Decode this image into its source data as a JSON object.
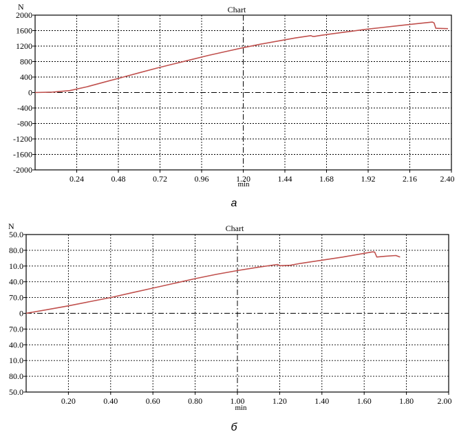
{
  "chart_data": [
    {
      "type": "line",
      "title": "Chart",
      "ylabel": "N",
      "xlabel": "min",
      "caption": "a",
      "xlim": [
        0,
        2.4
      ],
      "ylim": [
        -2000,
        2000
      ],
      "x_ticks": [
        "0.24",
        "0.48",
        "0.72",
        "0.96",
        "1.20",
        "1.44",
        "1.68",
        "1.92",
        "2.16",
        "2.40"
      ],
      "y_ticks": [
        "2000",
        "1600",
        "1200",
        "800",
        "400",
        "0",
        "-400",
        "-800",
        "-1200",
        "-1600",
        "-2000"
      ],
      "grid": true,
      "series": [
        {
          "color": "#c0504d",
          "x": [
            0,
            0.1,
            0.2,
            0.3,
            0.4,
            0.5,
            0.6,
            0.7,
            0.8,
            0.9,
            1.0,
            1.1,
            1.2,
            1.3,
            1.4,
            1.5,
            1.59,
            1.6,
            1.61,
            1.65,
            1.7,
            1.8,
            1.9,
            2.0,
            2.1,
            2.2,
            2.29,
            2.3,
            2.31,
            2.38
          ],
          "y": [
            0,
            10,
            50,
            150,
            270,
            390,
            510,
            630,
            740,
            850,
            960,
            1060,
            1160,
            1250,
            1330,
            1410,
            1470,
            1450,
            1450,
            1480,
            1510,
            1570,
            1630,
            1680,
            1730,
            1780,
            1820,
            1800,
            1660,
            1650
          ]
        }
      ]
    },
    {
      "type": "line",
      "title": "Chart",
      "ylabel": "N",
      "xlabel": "min",
      "caption": "б",
      "xlim": [
        0,
        2.0
      ],
      "ylim": [
        0,
        10
      ],
      "x_ticks": [
        "0.20",
        "0.40",
        "0.60",
        "0.80",
        "1.00",
        "1.20",
        "1.40",
        "1.60",
        "1.80",
        "2.00"
      ],
      "y_ticks": [
        "50.0",
        "80.0",
        "10.0",
        "40.0",
        "70.0",
        "0",
        "70.0",
        "40.0",
        "10.0",
        "80.0",
        "50.0"
      ],
      "grid": true,
      "series": [
        {
          "color": "#c0504d",
          "x": [
            0,
            0.1,
            0.2,
            0.3,
            0.4,
            0.5,
            0.6,
            0.7,
            0.8,
            0.9,
            1.0,
            1.1,
            1.19,
            1.2,
            1.25,
            1.3,
            1.4,
            1.5,
            1.64,
            1.65,
            1.66,
            1.7,
            1.75,
            1.77
          ],
          "y": [
            5.0,
            5.23,
            5.47,
            5.74,
            6.0,
            6.3,
            6.6,
            6.9,
            7.2,
            7.47,
            7.71,
            7.93,
            8.1,
            8.02,
            8.05,
            8.17,
            8.37,
            8.57,
            8.9,
            8.88,
            8.57,
            8.62,
            8.67,
            8.57
          ]
        }
      ]
    }
  ]
}
